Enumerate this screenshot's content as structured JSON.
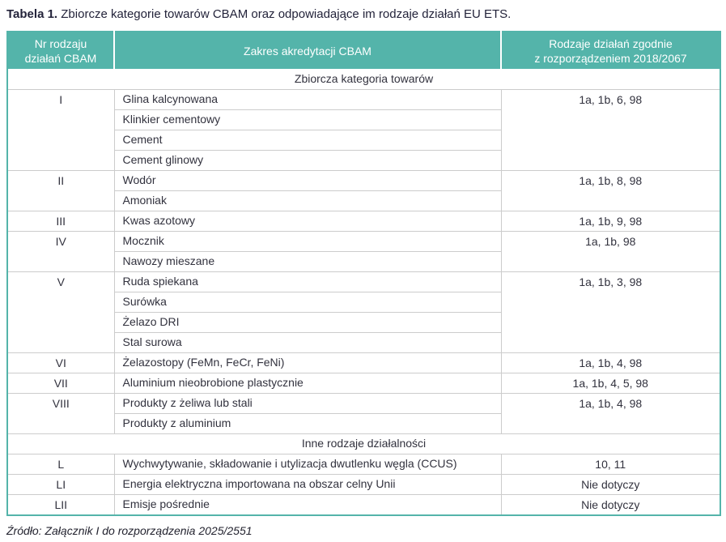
{
  "title": {
    "label": "Tabela 1.",
    "text": "Zbiorcze kategorie towarów CBAM oraz odpowiadające im rodzaje działań EU ETS."
  },
  "colors": {
    "accent_teal": "#54B4AA",
    "grid_gray": "#CCCCCC",
    "header_text": "#FFFFFF",
    "body_text": "#32323E"
  },
  "table": {
    "headers": [
      "Nr rodzaju\ndziałań CBAM",
      "Zakres akredytacji CBAM",
      "Rodzaje działań zgodnie\nz rozporządzeniem 2018/2067"
    ],
    "sections": [
      {
        "label": "Zbiorcza kategoria towarów",
        "groups": [
          {
            "nr": "I",
            "products": [
              "Glina kalcynowana",
              "Klinkier cementowy",
              "Cement",
              "Cement glinowy"
            ],
            "codes": "1a, 1b, 6, 98"
          },
          {
            "nr": "II",
            "products": [
              "Wodór",
              "Amoniak"
            ],
            "codes": "1a, 1b, 8, 98"
          },
          {
            "nr": "III",
            "products": [
              "Kwas azotowy"
            ],
            "codes": "1a, 1b, 9, 98"
          },
          {
            "nr": "IV",
            "products": [
              "Mocznik",
              "Nawozy mieszane"
            ],
            "codes": "1a, 1b, 98"
          },
          {
            "nr": "V",
            "products": [
              "Ruda spiekana",
              "Surówka",
              "Żelazo DRI",
              "Stal surowa"
            ],
            "codes": "1a, 1b, 3, 98"
          },
          {
            "nr": "VI",
            "products": [
              "Żelazostopy (FeMn, FeCr, FeNi)"
            ],
            "codes": "1a, 1b, 4, 98"
          },
          {
            "nr": "VII",
            "products": [
              "Aluminium nieobrobione plastycznie"
            ],
            "codes": "1a, 1b, 4, 5, 98"
          },
          {
            "nr": "VIII",
            "products": [
              "Produkty z żeliwa lub stali",
              "Produkty z aluminium"
            ],
            "codes": "1a, 1b, 4, 98"
          }
        ]
      },
      {
        "label": "Inne rodzaje działalności",
        "groups": [
          {
            "nr": "L",
            "products": [
              "Wychwytywanie, składowanie i utylizacja dwutlenku węgla (CCUS)"
            ],
            "codes": "10, 11"
          },
          {
            "nr": "LI",
            "products": [
              "Energia elektryczna importowana na obszar celny Unii"
            ],
            "codes": "Nie dotyczy"
          },
          {
            "nr": "LII",
            "products": [
              "Emisje pośrednie"
            ],
            "codes": "Nie dotyczy"
          }
        ]
      }
    ]
  },
  "footer": {
    "source": "Źródło: Załącznik I do rozporządzenia 2025/2551"
  }
}
